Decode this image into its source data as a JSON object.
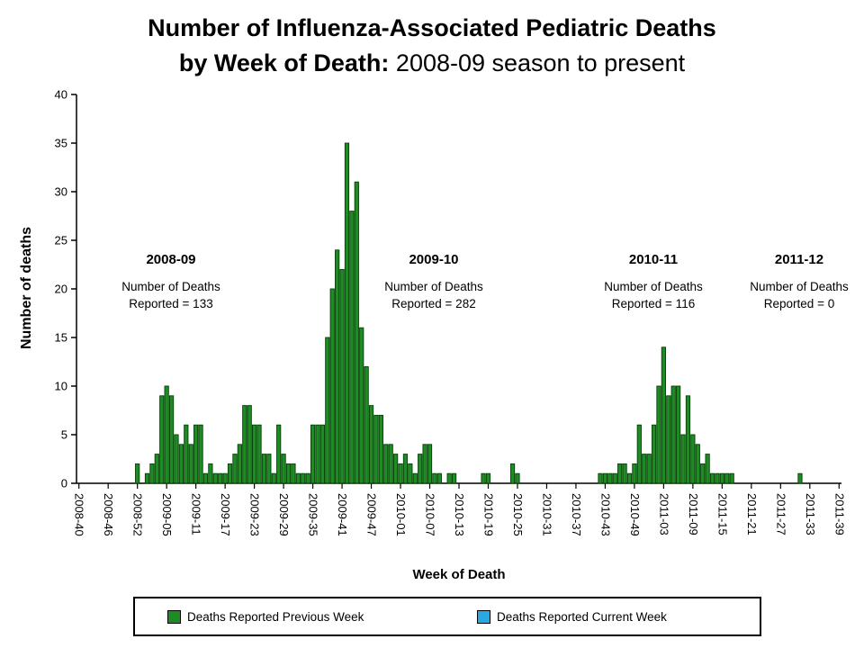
{
  "title": {
    "line1": "Number of Influenza-Associated Pediatric Deaths",
    "line2_bold": "by Week of Death:",
    "line2_regular": "2008-09 season to present"
  },
  "axes": {
    "y_label": "Number of deaths",
    "x_label": "Week of Death"
  },
  "annotations": [
    {
      "season": "2008-09",
      "line1": "Number of Deaths",
      "line2": "Reported = 133"
    },
    {
      "season": "2009-10",
      "line1": "Number of Deaths",
      "line2": "Reported = 282"
    },
    {
      "season": "2010-11",
      "line1": "Number of Deaths",
      "line2": "Reported = 116"
    },
    {
      "season": "2011-12",
      "line1": "Number of Deaths",
      "line2": "Reported = 0"
    }
  ],
  "legend": {
    "items": [
      {
        "label": "Deaths Reported Previous Week",
        "color": "#1f8b24"
      },
      {
        "label": "Deaths Reported Current Week",
        "color": "#29a9e1"
      }
    ]
  },
  "chart_data": {
    "type": "bar",
    "title": "Number of Influenza-Associated Pediatric Deaths by Week of Death: 2008-09 season to present",
    "xlabel": "Week of Death",
    "ylabel": "Number of deaths",
    "ylim": [
      0,
      40
    ],
    "y_ticks": [
      0,
      5,
      10,
      15,
      20,
      25,
      30,
      35,
      40
    ],
    "x_tick_every": 6,
    "grid": false,
    "legend_position": "bottom",
    "bar_fill": "#1f8b24",
    "bar_stroke": "#063f06",
    "season_totals": {
      "2008-09": 133,
      "2009-10": 282,
      "2010-11": 116,
      "2011-12": 0
    },
    "categories": [
      "2008-40",
      "2008-41",
      "2008-42",
      "2008-43",
      "2008-44",
      "2008-45",
      "2008-46",
      "2008-47",
      "2008-48",
      "2008-49",
      "2008-50",
      "2008-51",
      "2008-52",
      "2008-53",
      "2009-01",
      "2009-02",
      "2009-03",
      "2009-04",
      "2009-05",
      "2009-06",
      "2009-07",
      "2009-08",
      "2009-09",
      "2009-10",
      "2009-11",
      "2009-12",
      "2009-13",
      "2009-14",
      "2009-15",
      "2009-16",
      "2009-17",
      "2009-18",
      "2009-19",
      "2009-20",
      "2009-21",
      "2009-22",
      "2009-23",
      "2009-24",
      "2009-25",
      "2009-26",
      "2009-27",
      "2009-28",
      "2009-29",
      "2009-30",
      "2009-31",
      "2009-32",
      "2009-33",
      "2009-34",
      "2009-35",
      "2009-36",
      "2009-37",
      "2009-38",
      "2009-39",
      "2009-40",
      "2009-41",
      "2009-42",
      "2009-43",
      "2009-44",
      "2009-45",
      "2009-46",
      "2009-47",
      "2009-48",
      "2009-49",
      "2009-50",
      "2009-51",
      "2009-52",
      "2010-01",
      "2010-02",
      "2010-03",
      "2010-04",
      "2010-05",
      "2010-06",
      "2010-07",
      "2010-08",
      "2010-09",
      "2010-10",
      "2010-11",
      "2010-12",
      "2010-13",
      "2010-14",
      "2010-15",
      "2010-16",
      "2010-17",
      "2010-18",
      "2010-19",
      "2010-20",
      "2010-21",
      "2010-22",
      "2010-23",
      "2010-24",
      "2010-25",
      "2010-26",
      "2010-27",
      "2010-28",
      "2010-29",
      "2010-30",
      "2010-31",
      "2010-32",
      "2010-33",
      "2010-34",
      "2010-35",
      "2010-36",
      "2010-37",
      "2010-38",
      "2010-39",
      "2010-40",
      "2010-41",
      "2010-42",
      "2010-43",
      "2010-44",
      "2010-45",
      "2010-46",
      "2010-47",
      "2010-48",
      "2010-49",
      "2010-50",
      "2010-51",
      "2010-52",
      "2011-01",
      "2011-02",
      "2011-03",
      "2011-04",
      "2011-05",
      "2011-06",
      "2011-07",
      "2011-08",
      "2011-09",
      "2011-10",
      "2011-11",
      "2011-12",
      "2011-13",
      "2011-14",
      "2011-15",
      "2011-16",
      "2011-17",
      "2011-18",
      "2011-19",
      "2011-20",
      "2011-21",
      "2011-22",
      "2011-23",
      "2011-24",
      "2011-25",
      "2011-26",
      "2011-27",
      "2011-28",
      "2011-29",
      "2011-30",
      "2011-31",
      "2011-32",
      "2011-33",
      "2011-34",
      "2011-35",
      "2011-36",
      "2011-37",
      "2011-38",
      "2011-39"
    ],
    "values": [
      0,
      0,
      0,
      0,
      0,
      0,
      0,
      0,
      0,
      0,
      0,
      0,
      2,
      0,
      1,
      2,
      3,
      9,
      10,
      9,
      5,
      4,
      6,
      4,
      6,
      6,
      1,
      2,
      1,
      1,
      1,
      2,
      3,
      4,
      8,
      8,
      6,
      6,
      3,
      3,
      1,
      6,
      3,
      2,
      2,
      1,
      1,
      1,
      6,
      6,
      6,
      15,
      20,
      24,
      22,
      35,
      28,
      31,
      16,
      12,
      8,
      7,
      7,
      4,
      4,
      3,
      2,
      3,
      2,
      1,
      3,
      4,
      4,
      1,
      1,
      0,
      1,
      1,
      0,
      0,
      0,
      0,
      0,
      1,
      1,
      0,
      0,
      0,
      0,
      2,
      1,
      0,
      0,
      0,
      0,
      0,
      0,
      0,
      0,
      0,
      0,
      0,
      0,
      0,
      0,
      0,
      0,
      1,
      1,
      1,
      1,
      2,
      2,
      1,
      2,
      6,
      3,
      3,
      6,
      10,
      14,
      9,
      10,
      10,
      5,
      9,
      5,
      4,
      2,
      3,
      1,
      1,
      1,
      1,
      1,
      0,
      0,
      0,
      0,
      0,
      0,
      0,
      0,
      0,
      0,
      0,
      0,
      0,
      1,
      0,
      0,
      0,
      0,
      0,
      0,
      0,
      0
    ]
  }
}
